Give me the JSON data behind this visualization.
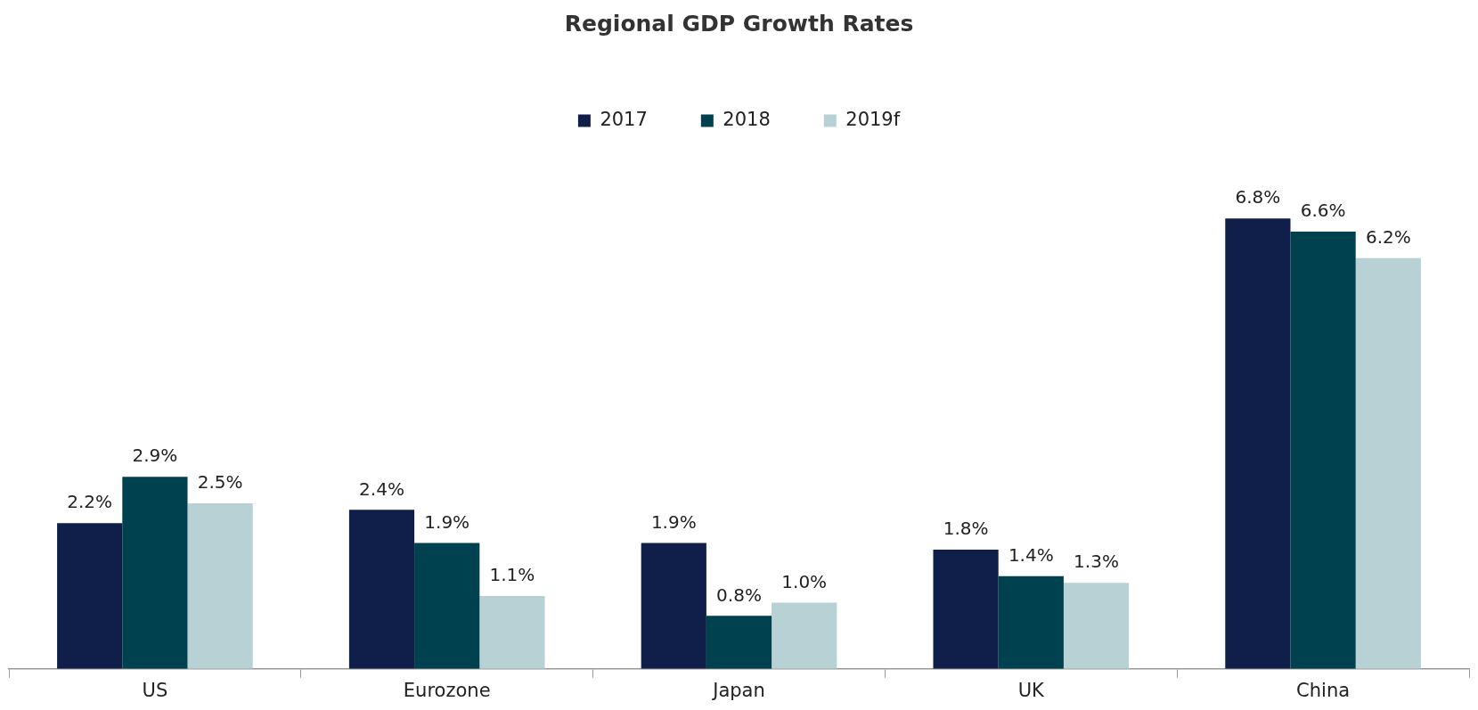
{
  "chart_data": {
    "type": "bar",
    "title": "Regional GDP Growth Rates",
    "categories": [
      "US",
      "Eurozone",
      "Japan",
      "UK",
      "China"
    ],
    "series": [
      {
        "name": "2017",
        "color": "#101f4a",
        "values": [
          2.2,
          2.4,
          1.9,
          1.8,
          6.8
        ],
        "value_labels": [
          "2.2%",
          "2.4%",
          "1.9%",
          "1.8%",
          "6.8%"
        ]
      },
      {
        "name": "2018",
        "color": "#00414f",
        "values": [
          2.9,
          1.9,
          0.8,
          1.4,
          6.6
        ],
        "value_labels": [
          "2.9%",
          "1.9%",
          "0.8%",
          "1.4%",
          "6.6%"
        ]
      },
      {
        "name": "2019f",
        "color": "#b7d1d5",
        "values": [
          2.5,
          1.1,
          1.0,
          1.3,
          6.2
        ],
        "value_labels": [
          "2.5%",
          "1.1%",
          "1.0%",
          "1.3%",
          "6.2%"
        ]
      }
    ],
    "legend": "top",
    "grid": false
  }
}
